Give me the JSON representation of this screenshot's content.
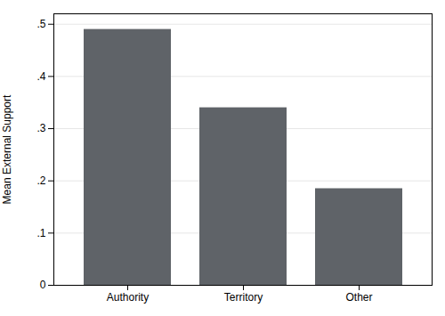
{
  "chart_data": {
    "type": "bar",
    "categories": [
      "Authority",
      "Territory",
      "Other"
    ],
    "values": [
      0.49,
      0.34,
      0.185
    ],
    "color": "#5f6368",
    "ylabel": "Mean External Support",
    "ylim": [
      0,
      0.52
    ],
    "yticks": [
      0,
      {
        "value": 0.1,
        "label": ".1"
      },
      {
        "value": 0.2,
        "label": ".2"
      },
      {
        "value": 0.3,
        "label": ".3"
      },
      {
        "value": 0.4,
        "label": ".4"
      },
      {
        "value": 0.5,
        "label": ".5"
      }
    ],
    "grid": true
  }
}
